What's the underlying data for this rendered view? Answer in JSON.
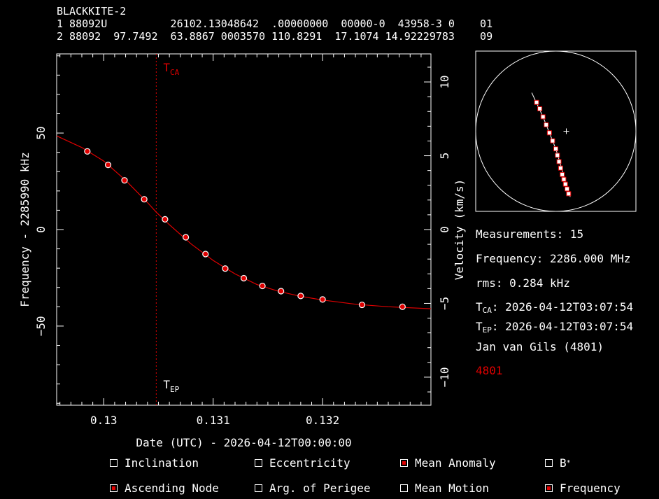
{
  "tle": {
    "name": "BLACKKITE-2",
    "line1": "1 88092U          26102.13048642  .00000000  00000-0  43958-3 0    01",
    "line2": "2 88092  97.7492  63.8867 0003570 110.8291  17.1074 14.92229783    09"
  },
  "chart_data": {
    "type": "scatter",
    "title": "",
    "xlabel": "Date (UTC) - 2026-04-12T00:00:00",
    "ylabel": "Frequency - 2285990 kHz",
    "y2label": "Velocity (km/s)",
    "xlim": [
      0.12957,
      0.13299
    ],
    "ylim": [
      -91,
      91
    ],
    "y2lim": [
      -11.9,
      11.9
    ],
    "x_ticks": [
      0.13,
      0.131,
      0.132
    ],
    "x_tick_labels": [
      "0.13",
      "0.131",
      "0.132"
    ],
    "y_ticks": [
      50,
      0,
      -50
    ],
    "y_tick_labels": [
      "50",
      "0",
      "−50"
    ],
    "y2_ticks": [
      10,
      5,
      0,
      -5,
      -10
    ],
    "y2_tick_labels": [
      "10",
      "5",
      "0",
      "−5",
      "−10"
    ],
    "t_ca": 0.13048,
    "t_ca_label": "T",
    "t_ca_sub": "CA",
    "t_ep": 0.13048,
    "t_ep_label": "T",
    "t_ep_sub": "EP",
    "series": [
      {
        "type": "points",
        "x": [
          0.12985,
          0.13004,
          0.13019,
          0.13037,
          0.13056,
          0.13075,
          0.13093,
          0.13111,
          0.13128,
          0.13145,
          0.13162,
          0.1318,
          0.132,
          0.13236,
          0.13273
        ],
        "y": [
          40.5,
          33.5,
          25.5,
          15.7,
          5.3,
          -4.0,
          -12.7,
          -20.2,
          -25.2,
          -29.2,
          -31.9,
          -34.4,
          -36.2,
          -39.0,
          -40.0
        ]
      },
      {
        "type": "fit-line",
        "x": [
          0.12957,
          0.1298,
          0.13,
          0.1302,
          0.1304,
          0.13048,
          0.1306,
          0.1308,
          0.131,
          0.1312,
          0.1314,
          0.1316,
          0.1318,
          0.132,
          0.1323,
          0.1326,
          0.13299
        ],
        "y": [
          48.5,
          42.5,
          35.5,
          25.5,
          14.0,
          9.0,
          2.5,
          -7.5,
          -16.0,
          -23.0,
          -28.5,
          -32.0,
          -34.6,
          -36.5,
          -38.7,
          -40.0,
          -41.0
        ]
      }
    ],
    "grid": false
  },
  "groundtrack": {
    "points": [
      [
        0.38,
        0.32
      ],
      [
        0.4,
        0.36
      ],
      [
        0.42,
        0.41
      ],
      [
        0.44,
        0.46
      ],
      [
        0.46,
        0.51
      ],
      [
        0.48,
        0.56
      ],
      [
        0.5,
        0.61
      ],
      [
        0.51,
        0.65
      ],
      [
        0.52,
        0.69
      ],
      [
        0.53,
        0.73
      ],
      [
        0.54,
        0.77
      ],
      [
        0.55,
        0.8
      ],
      [
        0.56,
        0.83
      ],
      [
        0.57,
        0.86
      ],
      [
        0.58,
        0.89
      ]
    ],
    "line": [
      [
        0.35,
        0.26
      ],
      [
        0.42,
        0.41
      ],
      [
        0.5,
        0.61
      ],
      [
        0.59,
        0.91
      ]
    ],
    "observer": [
      0.5,
      0.5
    ]
  },
  "info": {
    "measurements": "Measurements: 15",
    "frequency": "Frequency: 2286.000 MHz",
    "rms": "rms: 0.284 kHz",
    "tca_prefix": "T",
    "tca_sub": "CA",
    "tca_value": ": 2026-04-12T03:07:54",
    "tep_prefix": "T",
    "tep_sub": "EP",
    "tep_value": ": 2026-04-12T03:07:54",
    "observer": "Jan van Gils (4801)",
    "station_id": "4801"
  },
  "checkboxes": [
    {
      "label": "Inclination",
      "checked": false
    },
    {
      "label": "Eccentricity",
      "checked": false
    },
    {
      "label": "Mean Anomaly",
      "checked": true
    },
    {
      "label": "B",
      "sup": "*",
      "checked": false
    },
    {
      "label": "Ascending Node",
      "checked": true
    },
    {
      "label": "Arg. of Perigee",
      "checked": false
    },
    {
      "label": "Mean Motion",
      "checked": false
    },
    {
      "label": "Frequency",
      "checked": true
    }
  ],
  "colors": {
    "fit": "#e00000",
    "tca_line": "#e00000",
    "axes": "#ffffff"
  }
}
